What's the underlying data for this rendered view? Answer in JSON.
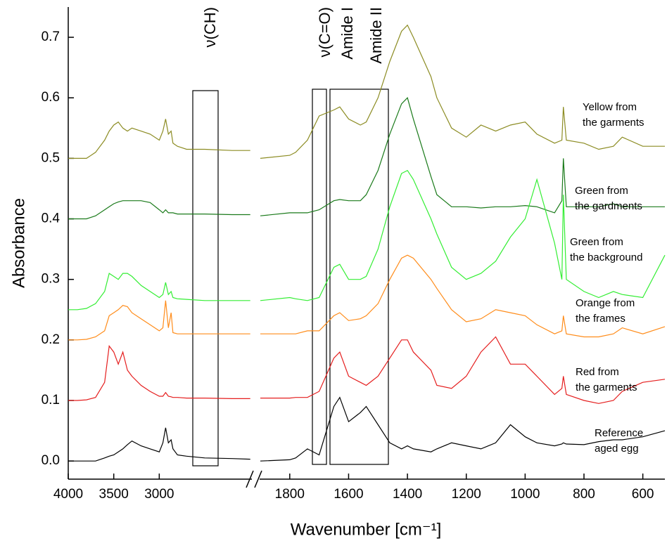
{
  "chart_data": {
    "type": "line",
    "x_label": "Wavenumber [cm⁻¹]",
    "y_label": "Absorbance",
    "xlim": [
      4000,
      525
    ],
    "x_break": [
      1990,
      1900
    ],
    "xticks": [
      4000,
      3500,
      3000,
      1800,
      1600,
      1400,
      1200,
      1000,
      800,
      600
    ],
    "ylim": [
      -0.03,
      0.75
    ],
    "yticks": [
      {
        "value": 0,
        "label": "0.0"
      },
      0.1,
      0.2,
      0.3,
      0.4,
      0.5,
      0.6,
      0.7
    ],
    "annotations": [
      "ν(CH)",
      "ν(C=O)",
      "Amide I",
      "Amide II"
    ],
    "x": [
      4000,
      3900,
      3800,
      3700,
      3600,
      3550,
      3500,
      3450,
      3400,
      3350,
      3300,
      3200,
      3100,
      3000,
      2960,
      2930,
      2900,
      2870,
      2850,
      2800,
      2700,
      2500,
      2200,
      2000,
      1900,
      1800,
      1780,
      1740,
      1700,
      1650,
      1630,
      1600,
      1560,
      1540,
      1500,
      1460,
      1420,
      1400,
      1380,
      1320,
      1300,
      1250,
      1200,
      1150,
      1100,
      1050,
      1000,
      960,
      900,
      875,
      870,
      860,
      800,
      750,
      700,
      670,
      600,
      525
    ],
    "series": [
      {
        "name": "Yellow from\nthe garments",
        "color": "#8c8c23",
        "values": [
          0.5,
          0.5,
          0.5,
          0.51,
          0.53,
          0.545,
          0.555,
          0.56,
          0.55,
          0.545,
          0.55,
          0.545,
          0.54,
          0.53,
          0.545,
          0.565,
          0.54,
          0.545,
          0.525,
          0.52,
          0.515,
          0.515,
          0.513,
          0.513,
          0.5,
          0.505,
          0.51,
          0.53,
          0.57,
          0.58,
          0.585,
          0.565,
          0.555,
          0.56,
          0.6,
          0.66,
          0.71,
          0.72,
          0.7,
          0.635,
          0.6,
          0.55,
          0.535,
          0.555,
          0.545,
          0.555,
          0.56,
          0.54,
          0.525,
          0.53,
          0.585,
          0.53,
          0.525,
          0.515,
          0.52,
          0.535,
          0.52,
          0.52
        ]
      },
      {
        "name": "Green from\nthe gardments",
        "color": "#1a7a1a",
        "values": [
          0.4,
          0.4,
          0.4,
          0.405,
          0.415,
          0.42,
          0.425,
          0.428,
          0.43,
          0.43,
          0.43,
          0.43,
          0.427,
          0.415,
          0.41,
          0.415,
          0.41,
          0.41,
          0.41,
          0.408,
          0.408,
          0.408,
          0.407,
          0.407,
          0.405,
          0.41,
          0.41,
          0.41,
          0.415,
          0.43,
          0.432,
          0.43,
          0.43,
          0.44,
          0.48,
          0.54,
          0.59,
          0.6,
          0.565,
          0.47,
          0.44,
          0.42,
          0.42,
          0.418,
          0.42,
          0.42,
          0.422,
          0.42,
          0.41,
          0.43,
          0.5,
          0.42,
          0.42,
          0.42,
          0.425,
          0.42,
          0.42,
          0.42
        ]
      },
      {
        "name": "Green from\nthe background",
        "color": "#33ee33",
        "values": [
          0.25,
          0.25,
          0.252,
          0.26,
          0.28,
          0.31,
          0.305,
          0.3,
          0.31,
          0.31,
          0.305,
          0.29,
          0.28,
          0.27,
          0.275,
          0.295,
          0.275,
          0.28,
          0.27,
          0.268,
          0.267,
          0.265,
          0.265,
          0.265,
          0.265,
          0.27,
          0.268,
          0.265,
          0.27,
          0.32,
          0.325,
          0.3,
          0.3,
          0.305,
          0.35,
          0.42,
          0.475,
          0.48,
          0.465,
          0.4,
          0.375,
          0.32,
          0.3,
          0.31,
          0.33,
          0.37,
          0.4,
          0.465,
          0.36,
          0.3,
          0.44,
          0.3,
          0.28,
          0.27,
          0.28,
          0.275,
          0.27,
          0.34
        ]
      },
      {
        "name": "Orange from\nthe frames",
        "color": "#ff8c1a",
        "values": [
          0.2,
          0.2,
          0.201,
          0.205,
          0.215,
          0.24,
          0.245,
          0.25,
          0.257,
          0.255,
          0.245,
          0.235,
          0.225,
          0.215,
          0.22,
          0.265,
          0.22,
          0.245,
          0.212,
          0.21,
          0.21,
          0.21,
          0.21,
          0.21,
          0.21,
          0.21,
          0.21,
          0.215,
          0.215,
          0.24,
          0.245,
          0.232,
          0.235,
          0.24,
          0.26,
          0.3,
          0.335,
          0.34,
          0.335,
          0.3,
          0.285,
          0.25,
          0.23,
          0.235,
          0.25,
          0.245,
          0.24,
          0.225,
          0.21,
          0.215,
          0.24,
          0.21,
          0.205,
          0.205,
          0.21,
          0.22,
          0.21,
          0.222
        ]
      },
      {
        "name": "Red from\nthe garments",
        "color": "#e51e1e",
        "values": [
          0.1,
          0.1,
          0.101,
          0.105,
          0.13,
          0.19,
          0.18,
          0.16,
          0.18,
          0.15,
          0.14,
          0.125,
          0.115,
          0.107,
          0.107,
          0.113,
          0.107,
          0.106,
          0.105,
          0.105,
          0.104,
          0.104,
          0.103,
          0.103,
          0.104,
          0.104,
          0.105,
          0.105,
          0.115,
          0.17,
          0.18,
          0.14,
          0.13,
          0.125,
          0.14,
          0.17,
          0.2,
          0.2,
          0.18,
          0.15,
          0.125,
          0.12,
          0.14,
          0.18,
          0.205,
          0.16,
          0.16,
          0.14,
          0.11,
          0.12,
          0.14,
          0.11,
          0.1,
          0.095,
          0.1,
          0.115,
          0.13,
          0.135
        ]
      },
      {
        "name": "Reference\naged egg",
        "color": "#000000",
        "values": [
          0,
          0,
          0,
          0,
          0.005,
          0.008,
          0.01,
          0.015,
          0.02,
          0.027,
          0.033,
          0.025,
          0.02,
          0.015,
          0.03,
          0.055,
          0.03,
          0.035,
          0.02,
          0.01,
          0.008,
          0.005,
          0.004,
          0.003,
          0,
          0.002,
          0.005,
          0.02,
          0.01,
          0.09,
          0.105,
          0.065,
          0.08,
          0.09,
          0.06,
          0.03,
          0.02,
          0.025,
          0.02,
          0.015,
          0.02,
          0.03,
          0.025,
          0.02,
          0.03,
          0.06,
          0.04,
          0.03,
          0.025,
          0.028,
          0.03,
          0.028,
          0.027,
          0.032,
          0.035,
          0.035,
          0.04,
          0.05
        ]
      }
    ]
  }
}
